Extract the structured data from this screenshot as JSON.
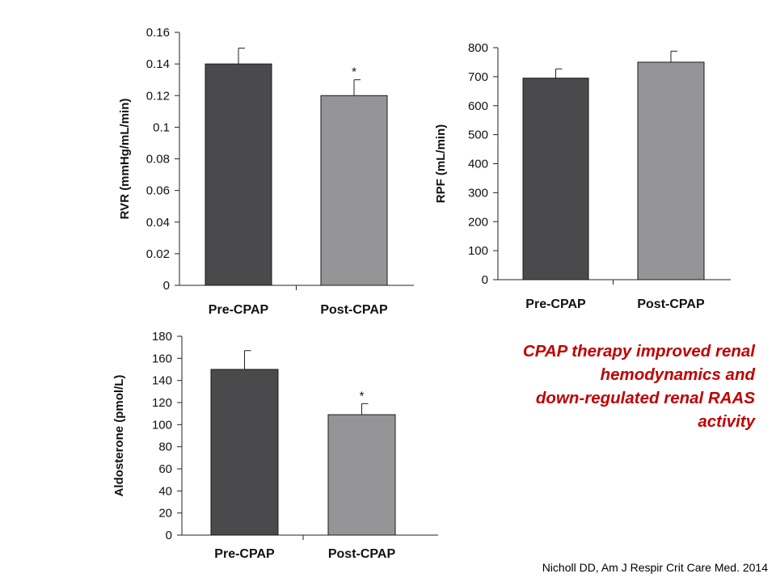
{
  "chart_data": [
    {
      "type": "bar",
      "categories": [
        "Pre-CPAP",
        "Post-CPAP"
      ],
      "values": [
        0.14,
        0.12
      ],
      "error": [
        0.01,
        0.01
      ],
      "significance": [
        "",
        "*"
      ],
      "ylabel": "RVR (mmHg/mL/min)",
      "ylim": [
        0,
        0.16
      ],
      "yticks": [
        "0",
        "0.02",
        "0.04",
        "0.06",
        "0.08",
        "0.1",
        "0.12",
        "0.14",
        "0.16"
      ],
      "colors": [
        "#4a4a4c",
        "#959597"
      ]
    },
    {
      "type": "bar",
      "categories": [
        "Pre-CPAP",
        "Post-CPAP"
      ],
      "values": [
        695,
        750
      ],
      "error": [
        32,
        38
      ],
      "significance": [
        "",
        ""
      ],
      "ylabel": "RPF (mL/min)",
      "ylim": [
        0,
        800
      ],
      "yticks": [
        "0",
        "100",
        "200",
        "300",
        "400",
        "500",
        "600",
        "700",
        "800"
      ],
      "colors": [
        "#4a4a4c",
        "#959597"
      ]
    },
    {
      "type": "bar",
      "categories": [
        "Pre-CPAP",
        "Post-CPAP"
      ],
      "values": [
        150,
        109
      ],
      "error": [
        17,
        10
      ],
      "significance": [
        "",
        "*"
      ],
      "ylabel": "Aldosterone (pmol/L)",
      "ylim": [
        0,
        180
      ],
      "yticks": [
        "0",
        "20",
        "40",
        "60",
        "80",
        "100",
        "120",
        "140",
        "160",
        "180"
      ],
      "colors": [
        "#4a4a4c",
        "#959597"
      ]
    }
  ],
  "annotation": {
    "lines": [
      "CPAP therapy improved renal",
      "hemodynamics and",
      "down-regulated renal RAAS",
      "activity"
    ],
    "color": "#c00000"
  },
  "citation": "Nicholl DD, Am J Respir Crit Care Med. 2014"
}
